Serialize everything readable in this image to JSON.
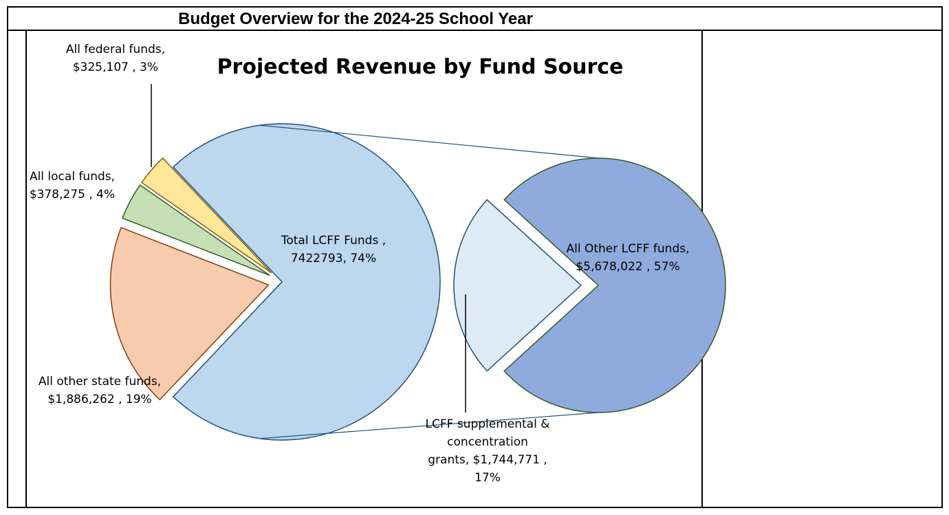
{
  "page_title": "Budget Overview for the 2024-25 School Year",
  "chart_data": {
    "type": "pie",
    "subtype": "pie-of-pie",
    "title": "Projected Revenue by Fund Source",
    "main_pie": {
      "slices": [
        {
          "key": "lcff",
          "label_lines": [
            "Total LCFF Funds ,",
            "7422793, 74%"
          ],
          "value": 7422793,
          "percent": 74,
          "color": "#bdd7ee",
          "stroke": "#1f4e79"
        },
        {
          "key": "other_state",
          "label_lines": [
            "All other state funds,",
            "$1,886,262 , 19%"
          ],
          "value": 1886262,
          "percent": 19,
          "color": "#f8cbad",
          "stroke": "#843c0c"
        },
        {
          "key": "local",
          "label_lines": [
            "All local funds,",
            "$378,275 , 4%"
          ],
          "value": 378275,
          "percent": 4,
          "color": "#c5e0b4",
          "stroke": "#385723"
        },
        {
          "key": "federal",
          "label_lines": [
            "All federal funds,",
            "$325,107 , 3%"
          ],
          "value": 325107,
          "percent": 3,
          "color": "#ffe699",
          "stroke": "#7f6000"
        }
      ]
    },
    "secondary_pie": {
      "slices": [
        {
          "key": "lcff_other",
          "label_lines": [
            "All Other LCFF funds,",
            "$5,678,022 , 57%"
          ],
          "value": 5678022,
          "percent": 57,
          "color": "#8faadc",
          "stroke": "#385723"
        },
        {
          "key": "supplemental",
          "label_lines": [
            "LCFF supplemental &",
            "concentration",
            "grants,  $1,744,771 ,",
            "17%"
          ],
          "value": 1744771,
          "percent": 17,
          "color": "#deebf7",
          "stroke": "#1f4e79"
        }
      ]
    },
    "legend": "none"
  }
}
